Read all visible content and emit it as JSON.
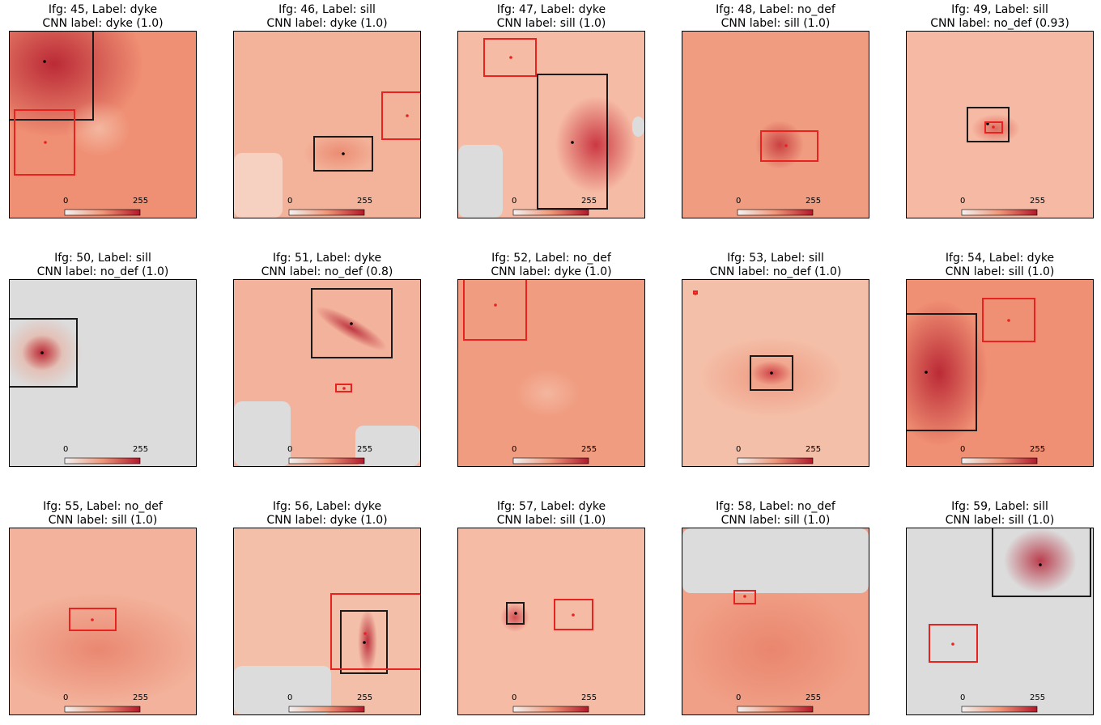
{
  "colorbar": {
    "min_label": "0",
    "max_label": "255"
  },
  "colors": {
    "low": "#f3d9cd",
    "mid": "#ef9779",
    "high": "#b2182b",
    "masked": "#dcdcdc",
    "cnn_box": "#1a1a1a",
    "label_box": "#e8221f"
  },
  "panels": [
    {
      "title": "Ifg: 45, Label: dyke",
      "subtitle": "CNN label: dyke (1.0)",
      "label": "dyke",
      "cnn_label": "dyke",
      "confidence": 1.0
    },
    {
      "title": "Ifg: 46, Label: sill",
      "subtitle": "CNN label: dyke (1.0)",
      "label": "sill",
      "cnn_label": "dyke",
      "confidence": 1.0
    },
    {
      "title": "Ifg: 47, Label: dyke",
      "subtitle": "CNN label: sill (1.0)",
      "label": "dyke",
      "cnn_label": "sill",
      "confidence": 1.0
    },
    {
      "title": "Ifg: 48, Label: no_def",
      "subtitle": "CNN label: sill (1.0)",
      "label": "no_def",
      "cnn_label": "sill",
      "confidence": 1.0
    },
    {
      "title": "Ifg: 49, Label: sill",
      "subtitle": "CNN label: no_def (0.93)",
      "label": "sill",
      "cnn_label": "no_def",
      "confidence": 0.93
    },
    {
      "title": "Ifg: 50, Label: sill",
      "subtitle": "CNN label: no_def (1.0)",
      "label": "sill",
      "cnn_label": "no_def",
      "confidence": 1.0
    },
    {
      "title": "Ifg: 51, Label: dyke",
      "subtitle": "CNN label: no_def (0.8)",
      "label": "dyke",
      "cnn_label": "no_def",
      "confidence": 0.8
    },
    {
      "title": "Ifg: 52, Label: no_def",
      "subtitle": "CNN label: dyke (1.0)",
      "label": "no_def",
      "cnn_label": "dyke",
      "confidence": 1.0
    },
    {
      "title": "Ifg: 53, Label: sill",
      "subtitle": "CNN label: no_def (1.0)",
      "label": "sill",
      "cnn_label": "no_def",
      "confidence": 1.0
    },
    {
      "title": "Ifg: 54, Label: dyke",
      "subtitle": "CNN label: sill (1.0)",
      "label": "dyke",
      "cnn_label": "sill",
      "confidence": 1.0
    },
    {
      "title": "Ifg: 55, Label: no_def",
      "subtitle": "CNN label: sill (1.0)",
      "label": "no_def",
      "cnn_label": "sill",
      "confidence": 1.0
    },
    {
      "title": "Ifg: 56, Label: dyke",
      "subtitle": "CNN label: dyke (1.0)",
      "label": "dyke",
      "cnn_label": "dyke",
      "confidence": 1.0
    },
    {
      "title": "Ifg: 57, Label: dyke",
      "subtitle": "CNN label: sill (1.0)",
      "label": "dyke",
      "cnn_label": "sill",
      "confidence": 1.0
    },
    {
      "title": "Ifg: 58, Label: no_def",
      "subtitle": "CNN label: sill (1.0)",
      "label": "no_def",
      "cnn_label": "sill",
      "confidence": 1.0
    },
    {
      "title": "Ifg: 59, Label: sill",
      "subtitle": "CNN label: sill (1.0)",
      "label": "sill",
      "cnn_label": "sill",
      "confidence": 1.0
    }
  ]
}
